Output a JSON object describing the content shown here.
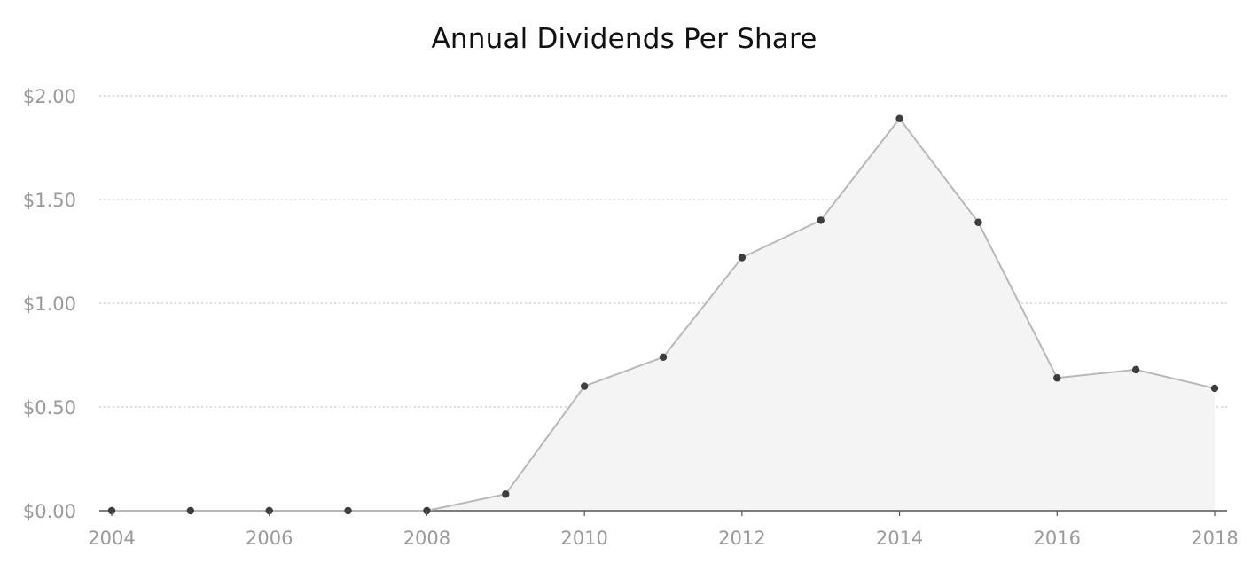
{
  "chart_data": {
    "type": "area",
    "title": "Annual Dividends Per Share",
    "xlabel": "",
    "ylabel": "",
    "x": [
      2004,
      2005,
      2006,
      2007,
      2008,
      2009,
      2010,
      2011,
      2012,
      2013,
      2014,
      2015,
      2016,
      2017,
      2018
    ],
    "series": [
      {
        "values": [
          0,
          0,
          0,
          0,
          0,
          0.08,
          0.6,
          0.74,
          1.22,
          1.4,
          1.89,
          1.39,
          0.64,
          0.68,
          0.59
        ]
      }
    ],
    "xticks": [
      "2004",
      "2006",
      "2008",
      "2010",
      "2012",
      "2014",
      "2016",
      "2018"
    ],
    "yticks": [
      "$0.00",
      "$0.50",
      "$1.00",
      "$1.50",
      "$2.00"
    ],
    "ylim": [
      0,
      2
    ],
    "xlim": [
      2004,
      2018
    ],
    "grid": true,
    "legend": "none",
    "colors": {
      "line": "#b8b8b8",
      "fill": "#f4f4f4",
      "point": "#3d3d3d",
      "grid": "#c8c8c8",
      "axis": "#555555",
      "tick_text": "#9a9a9a",
      "title": "#111111"
    }
  }
}
